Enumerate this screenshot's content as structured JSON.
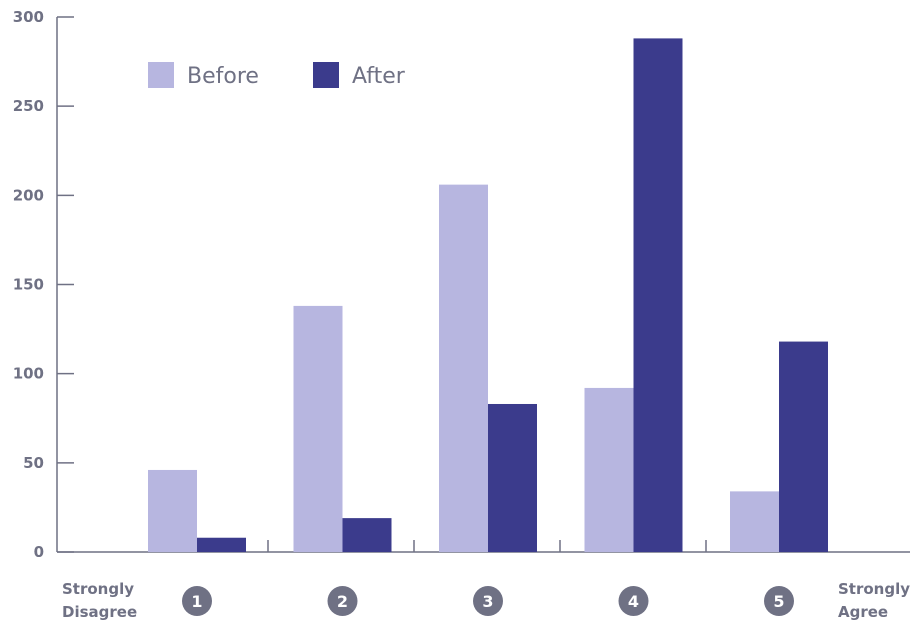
{
  "chart_data": {
    "type": "bar",
    "categories": [
      "1",
      "2",
      "3",
      "4",
      "5"
    ],
    "series": [
      {
        "name": "Before",
        "color": "#b7b6e0",
        "values": [
          46,
          138,
          206,
          92,
          34
        ]
      },
      {
        "name": "After",
        "color": "#3b3b8c",
        "values": [
          8,
          19,
          83,
          288,
          118
        ]
      }
    ],
    "ylim": [
      0,
      300
    ],
    "yticks": [
      0,
      50,
      100,
      150,
      200,
      250,
      300
    ],
    "legend_position": "top-left",
    "grid": false,
    "scale_endpoints": {
      "left": [
        "Strongly",
        "Disagree"
      ],
      "right": [
        "Strongly",
        "Agree"
      ]
    }
  },
  "colors": {
    "axis": "#6f7184",
    "text": "#6f7184",
    "badge": "#6f7184"
  }
}
